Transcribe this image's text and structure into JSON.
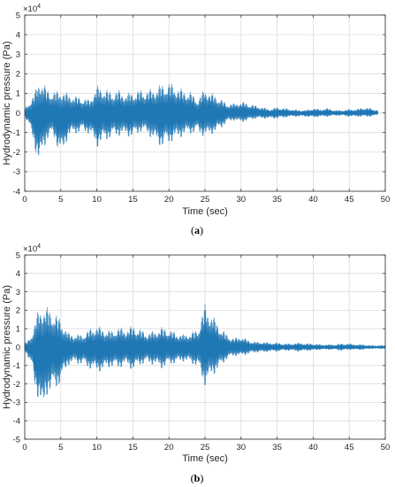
{
  "chart_data": [
    {
      "type": "line",
      "caption_prefix": "(",
      "caption_letter": "a",
      "caption_suffix": ")",
      "xlabel": "Time (sec)",
      "ylabel": "Hydrodynamic pressure (Pa)",
      "exponent_base": "×10",
      "exponent_power": "4",
      "xlim": [
        0,
        50
      ],
      "ylim": [
        -4,
        5
      ],
      "xticks": [
        "0",
        "5",
        "10",
        "15",
        "20",
        "25",
        "30",
        "35",
        "40",
        "45",
        "50"
      ],
      "yticks": [
        "-4",
        "-3",
        "-2",
        "-1",
        "0",
        "1",
        "2",
        "3",
        "4",
        "5"
      ],
      "grid": true,
      "line_color": "#1f77b4",
      "series": [
        {
          "t_end": 49,
          "envelope_t": [
            0,
            0.5,
            1,
            1.5,
            2,
            2.5,
            3,
            4,
            5,
            6,
            7,
            8,
            9,
            10,
            11,
            12,
            13,
            14,
            15,
            16,
            17,
            18,
            19,
            20,
            21,
            22,
            23,
            24,
            25,
            26,
            27,
            28,
            29,
            30,
            31,
            32,
            33,
            34,
            35,
            36,
            37,
            38,
            39,
            40,
            41,
            42,
            43,
            44,
            45,
            46,
            47,
            48,
            49
          ],
          "envelope_max": [
            0.2,
            0.5,
            0.8,
            1.2,
            1.75,
            1.6,
            1.3,
            1.1,
            1.2,
            1.0,
            0.9,
            0.8,
            0.7,
            1.4,
            1.3,
            1.1,
            1.2,
            1.0,
            1.1,
            1.2,
            1.2,
            1.3,
            1.5,
            1.6,
            1.4,
            1.2,
            1.1,
            0.7,
            1.3,
            1.0,
            0.8,
            0.5,
            0.5,
            0.6,
            0.5,
            0.4,
            0.3,
            0.2,
            0.3,
            0.25,
            0.2,
            0.15,
            0.15,
            0.25,
            0.2,
            0.25,
            0.15,
            0.15,
            0.2,
            0.2,
            0.3,
            0.25,
            0.15
          ],
          "envelope_min": [
            -0.2,
            -0.6,
            -1.2,
            -2.0,
            -2.95,
            -2.0,
            -1.5,
            -1.2,
            -2.4,
            -1.3,
            -1.1,
            -1.0,
            -1.1,
            -1.8,
            -1.5,
            -1.3,
            -1.2,
            -1.2,
            -1.3,
            -1.0,
            -1.1,
            -1.5,
            -1.8,
            -1.6,
            -1.4,
            -1.2,
            -1.1,
            -1.0,
            -1.3,
            -1.1,
            -0.9,
            -0.5,
            -0.4,
            -0.5,
            -0.4,
            -0.3,
            -0.3,
            -0.3,
            -0.3,
            -0.25,
            -0.2,
            -0.2,
            -0.2,
            -0.25,
            -0.2,
            -0.2,
            -0.15,
            -0.15,
            -0.2,
            -0.2,
            -0.2,
            -0.2,
            -0.1
          ]
        }
      ]
    },
    {
      "type": "line",
      "caption_prefix": "(",
      "caption_letter": "b",
      "caption_suffix": ")",
      "xlabel": "Time (sec)",
      "ylabel": "Hydrodynamic pressure (Pa)",
      "exponent_base": "×10",
      "exponent_power": "4",
      "xlim": [
        0,
        50
      ],
      "ylim": [
        -5,
        5
      ],
      "xticks": [
        "0",
        "5",
        "10",
        "15",
        "20",
        "25",
        "30",
        "35",
        "40",
        "45",
        "50"
      ],
      "yticks": [
        "-5",
        "-4",
        "-3",
        "-2",
        "-1",
        "0",
        "1",
        "2",
        "3",
        "4",
        "5"
      ],
      "grid": true,
      "line_color": "#1f77b4",
      "series": [
        {
          "t_end": 50,
          "envelope_t": [
            0,
            0.5,
            1,
            1.5,
            2,
            2.5,
            3,
            4,
            5,
            6,
            7,
            8,
            9,
            10,
            11,
            12,
            13,
            14,
            15,
            16,
            17,
            18,
            19,
            20,
            21,
            22,
            23,
            24,
            25,
            26,
            27,
            28,
            29,
            30,
            31,
            32,
            33,
            34,
            35,
            36,
            37,
            38,
            39,
            40,
            41,
            42,
            43,
            44,
            45,
            46,
            47,
            48,
            49,
            50
          ],
          "envelope_max": [
            0.2,
            0.4,
            0.8,
            1.5,
            2.2,
            2.3,
            2.2,
            2.0,
            1.5,
            0.8,
            0.7,
            0.7,
            1.0,
            1.2,
            1.0,
            0.9,
            1.1,
            1.0,
            1.2,
            1.0,
            0.8,
            0.9,
            1.1,
            1.0,
            0.8,
            0.7,
            0.8,
            1.0,
            2.4,
            1.8,
            1.2,
            0.7,
            0.5,
            0.6,
            0.4,
            0.3,
            0.3,
            0.25,
            0.25,
            0.2,
            0.2,
            0.25,
            0.2,
            0.2,
            0.15,
            0.15,
            0.15,
            0.2,
            0.2,
            0.15,
            0.15,
            0.1,
            0.1,
            0.1
          ],
          "envelope_min": [
            -0.2,
            -0.6,
            -1.2,
            -2.5,
            -3.0,
            -4.1,
            -2.7,
            -2.5,
            -2.0,
            -1.0,
            -0.9,
            -1.0,
            -1.2,
            -1.4,
            -1.3,
            -1.1,
            -1.2,
            -1.0,
            -1.3,
            -1.0,
            -0.9,
            -1.0,
            -1.2,
            -1.0,
            -0.9,
            -0.8,
            -0.9,
            -1.1,
            -2.2,
            -1.6,
            -1.2,
            -0.7,
            -0.5,
            -0.5,
            -0.4,
            -0.3,
            -0.3,
            -0.25,
            -0.25,
            -0.2,
            -0.2,
            -0.25,
            -0.2,
            -0.2,
            -0.15,
            -0.15,
            -0.15,
            -0.2,
            -0.15,
            -0.15,
            -0.15,
            -0.1,
            -0.1,
            -0.1
          ]
        }
      ]
    }
  ]
}
